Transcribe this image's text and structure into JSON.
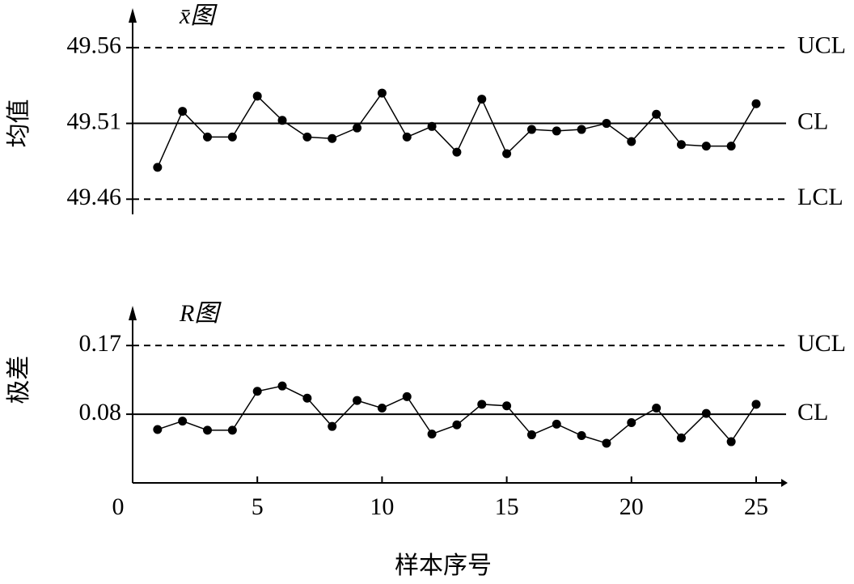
{
  "chart_data": [
    {
      "type": "line",
      "title": "x̄图",
      "ylabel": "均值",
      "color": "#000000",
      "x": [
        1,
        2,
        3,
        4,
        5,
        6,
        7,
        8,
        9,
        10,
        11,
        12,
        13,
        14,
        15,
        16,
        17,
        18,
        19,
        20,
        21,
        22,
        23,
        24,
        25
      ],
      "values": [
        49.481,
        49.518,
        49.501,
        49.501,
        49.528,
        49.512,
        49.501,
        49.5,
        49.507,
        49.53,
        49.501,
        49.508,
        49.491,
        49.526,
        49.49,
        49.506,
        49.505,
        49.506,
        49.51,
        49.498,
        49.516,
        49.496,
        49.495,
        49.495,
        49.523
      ],
      "xlim": [
        0,
        26.2
      ],
      "ylim": [
        49.45,
        49.585
      ],
      "yticks": [
        49.46,
        49.51,
        49.56
      ],
      "control_lines": [
        {
          "label": "UCL",
          "value": 49.56,
          "style": "dashed"
        },
        {
          "label": "CL",
          "value": 49.51,
          "style": "solid"
        },
        {
          "label": "LCL",
          "value": 49.46,
          "style": "dashed"
        }
      ]
    },
    {
      "type": "line",
      "title": "R图",
      "ylabel": "极差",
      "xlabel": "样本序号",
      "color": "#000000",
      "x": [
        1,
        2,
        3,
        4,
        5,
        6,
        7,
        8,
        9,
        10,
        11,
        12,
        13,
        14,
        15,
        16,
        17,
        18,
        19,
        20,
        21,
        22,
        23,
        24,
        25
      ],
      "values": [
        0.06,
        0.071,
        0.059,
        0.059,
        0.11,
        0.117,
        0.101,
        0.064,
        0.098,
        0.088,
        0.103,
        0.054,
        0.066,
        0.093,
        0.091,
        0.053,
        0.067,
        0.052,
        0.042,
        0.069,
        0.088,
        0.049,
        0.081,
        0.044,
        0.093
      ],
      "xlim": [
        0,
        26.2
      ],
      "xticks": [
        0,
        5,
        10,
        15,
        20,
        25
      ],
      "ylim": [
        -0.01,
        0.22
      ],
      "yticks": [
        0.08,
        0.17
      ],
      "control_lines": [
        {
          "label": "UCL",
          "value": 0.17,
          "style": "dashed"
        },
        {
          "label": "CL",
          "value": 0.08,
          "style": "solid"
        }
      ]
    }
  ]
}
